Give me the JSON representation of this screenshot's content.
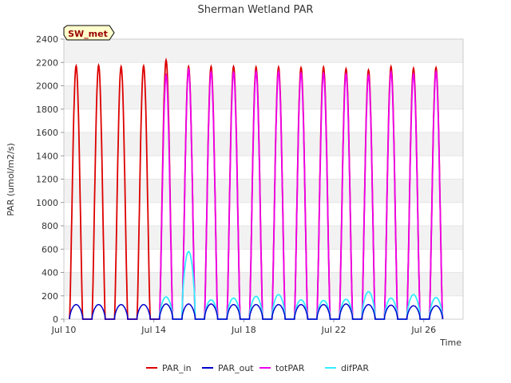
{
  "chart_data": {
    "type": "line",
    "title": "Sherman Wetland PAR",
    "xlabel": "Time",
    "ylabel": "PAR (umol/m2/s)",
    "site_tag": "SW_met",
    "x_range_days": [
      "2000-07-10",
      "2000-07-27T18:00"
    ],
    "ylim": [
      0,
      2400
    ],
    "yticks": [
      0,
      200,
      400,
      600,
      800,
      1000,
      1200,
      1400,
      1600,
      1800,
      2000,
      2200,
      2400
    ],
    "xticks": [
      {
        "date": "2000-07-10",
        "label": "Jul 10"
      },
      {
        "date": "2000-07-14",
        "label": "Jul 14"
      },
      {
        "date": "2000-07-18",
        "label": "Jul 18"
      },
      {
        "date": "2000-07-22",
        "label": "Jul 22"
      },
      {
        "date": "2000-07-26",
        "label": "Jul 26"
      }
    ],
    "grid": "horizontal bands",
    "legend_position": "bottom",
    "series": [
      {
        "name": "PAR_in",
        "color": "#dd0000",
        "days": [
          "2000-07-10",
          "2000-07-11",
          "2000-07-12",
          "2000-07-13",
          "2000-07-14",
          "2000-07-15",
          "2000-07-16",
          "2000-07-17",
          "2000-07-18",
          "2000-07-19",
          "2000-07-20",
          "2000-07-21",
          "2000-07-22",
          "2000-07-23",
          "2000-07-24",
          "2000-07-25",
          "2000-07-26"
        ],
        "daily_peak": [
          2170,
          2175,
          2165,
          2170,
          2220,
          2165,
          2165,
          2165,
          2160,
          2160,
          2155,
          2160,
          2145,
          2135,
          2165,
          2150,
          2155
        ]
      },
      {
        "name": "PAR_out",
        "color": "#0000cc",
        "days": [
          "2000-07-10",
          "2000-07-11",
          "2000-07-12",
          "2000-07-13",
          "2000-07-14",
          "2000-07-15",
          "2000-07-16",
          "2000-07-17",
          "2000-07-18",
          "2000-07-19",
          "2000-07-20",
          "2000-07-21",
          "2000-07-22",
          "2000-07-23",
          "2000-07-24",
          "2000-07-25",
          "2000-07-26"
        ],
        "daily_peak": [
          125,
          125,
          125,
          125,
          130,
          130,
          130,
          125,
          125,
          125,
          125,
          125,
          130,
          125,
          120,
          115,
          115
        ]
      },
      {
        "name": "totPAR",
        "color": "#ee00ee",
        "days": [
          "2000-07-14",
          "2000-07-15",
          "2000-07-16",
          "2000-07-17",
          "2000-07-18",
          "2000-07-19",
          "2000-07-20",
          "2000-07-21",
          "2000-07-22",
          "2000-07-23",
          "2000-07-24",
          "2000-07-25",
          "2000-07-26"
        ],
        "daily_peak": [
          2090,
          2140,
          2120,
          2115,
          2120,
          2120,
          2110,
          2105,
          2100,
          2090,
          2120,
          2100,
          2120
        ]
      },
      {
        "name": "difPAR",
        "color": "#33eeff",
        "days": [
          "2000-07-14",
          "2000-07-15",
          "2000-07-16",
          "2000-07-17",
          "2000-07-18",
          "2000-07-19",
          "2000-07-20",
          "2000-07-21",
          "2000-07-22",
          "2000-07-23",
          "2000-07-24",
          "2000-07-25",
          "2000-07-26"
        ],
        "daily_peak": [
          190,
          580,
          165,
          180,
          195,
          210,
          165,
          160,
          170,
          235,
          180,
          210,
          185
        ]
      }
    ]
  }
}
